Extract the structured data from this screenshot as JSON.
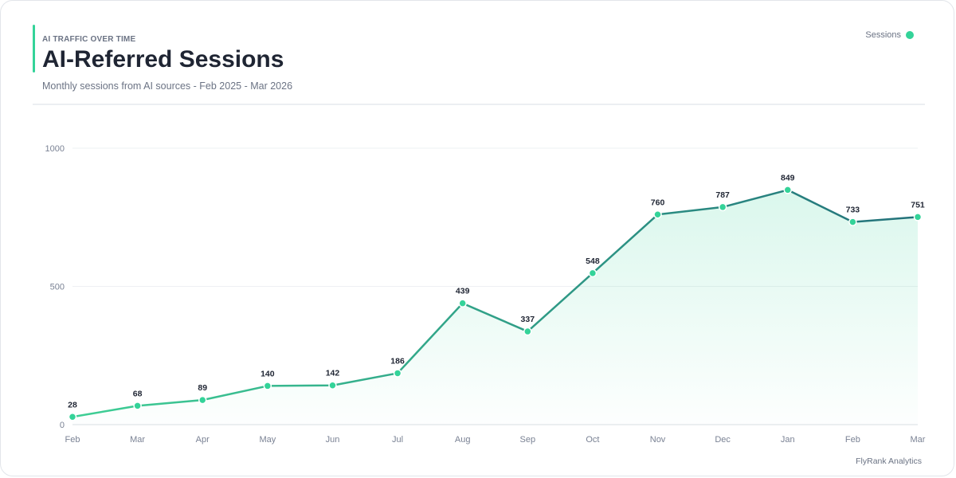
{
  "header": {
    "kicker": "AI TRAFFIC OVER TIME",
    "title": "AI-Referred Sessions",
    "subtitle": "Monthly sessions from AI sources - Feb 2025 - Mar 2026"
  },
  "legend": {
    "label": "Sessions"
  },
  "footer": {
    "text": "FlyRank Analytics"
  },
  "colors": {
    "accent": "#34d399",
    "line_start": "#3ecf95",
    "line_end": "#23717a",
    "point": "#34d399",
    "area": "#34d399"
  },
  "chart_data": {
    "type": "area",
    "title": "AI-Referred Sessions",
    "subtitle": "Monthly sessions from AI sources - Feb 2025 - Mar 2026",
    "categories": [
      "Feb",
      "Mar",
      "Apr",
      "May",
      "Jun",
      "Jul",
      "Aug",
      "Sep",
      "Oct",
      "Nov",
      "Dec",
      "Jan",
      "Feb",
      "Mar"
    ],
    "series": [
      {
        "name": "Sessions",
        "values": [
          28,
          68,
          89,
          140,
          142,
          186,
          439,
          337,
          548,
          760,
          787,
          849,
          733,
          751
        ]
      }
    ],
    "ylim": [
      0,
      1000
    ],
    "yticks": [
      0,
      500,
      1000
    ],
    "grid": true,
    "legend_position": "top-right",
    "data_labels": true
  }
}
